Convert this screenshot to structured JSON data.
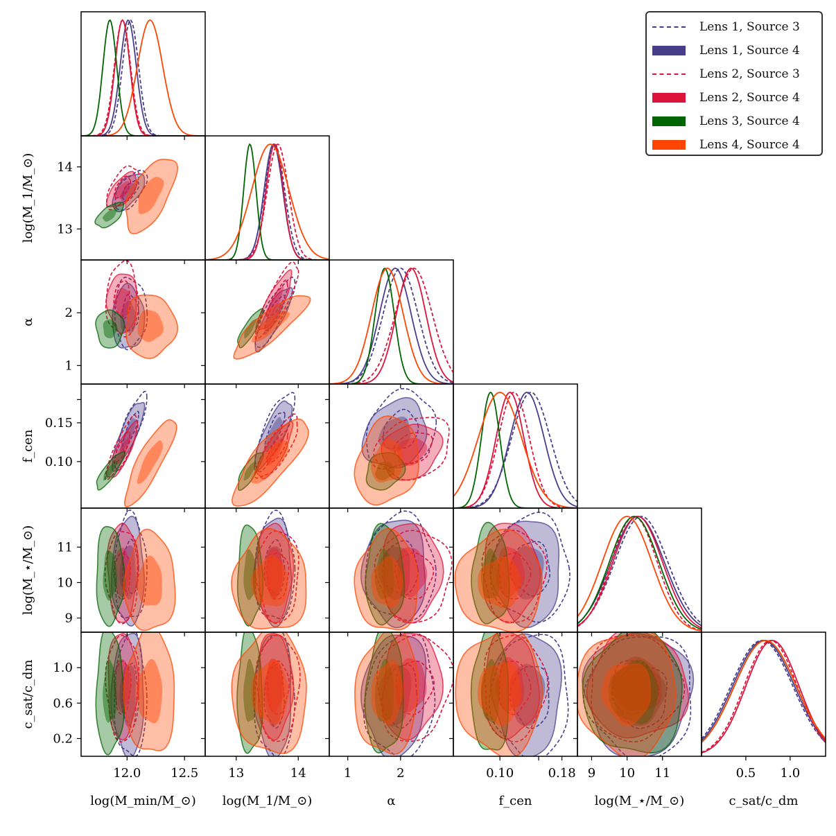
{
  "chart_data": {
    "type": "corner",
    "parameters": [
      {
        "key": "log_mmin",
        "range": [
          11.6,
          12.68
        ],
        "ticks": [
          12.0,
          12.5
        ],
        "tick_labels": [
          "12.0",
          "12.5"
        ],
        "ytick_labels": []
      },
      {
        "key": "log_m1",
        "range": [
          12.5,
          14.5
        ],
        "ticks": [
          13,
          14
        ],
        "tick_labels": [
          "13",
          "14"
        ],
        "ytick_labels": [
          "13",
          "14"
        ]
      },
      {
        "key": "alpha",
        "range": [
          0.65,
          3.0
        ],
        "ticks": [
          1,
          2
        ],
        "tick_labels": [
          "1",
          "2"
        ],
        "ytick_labels": [
          "1",
          "2"
        ]
      },
      {
        "key": "f_cen",
        "range": [
          0.04,
          0.2
        ],
        "ticks": [
          0.1,
          0.15,
          0.18
        ],
        "tick_labels": [
          "0.10",
          "",
          "0.18"
        ],
        "ytick_labels": [
          "0.10",
          "0.15"
        ]
      },
      {
        "key": "log_mstar",
        "range": [
          8.6,
          12.1
        ],
        "ticks": [
          9,
          10,
          11
        ],
        "tick_labels": [
          "9",
          "10",
          "11"
        ],
        "ytick_labels": [
          "9",
          "10",
          "11"
        ]
      },
      {
        "key": "c_ratio",
        "range": [
          0.0,
          1.4
        ],
        "ticks": [
          0.2,
          0.6,
          1.0
        ],
        "tick_labels": [
          "0.5",
          "1.0"
        ],
        "ytick_labels": [
          "0.2",
          "0.6",
          "1.0"
        ]
      }
    ],
    "axis_labels": {
      "log_mmin": "log(M_min/M_⊙)",
      "log_m1": "log(M_1/M_⊙)",
      "alpha": "α",
      "f_cen": "f_cen",
      "log_mstar": "log(M_⋆/M_⊙)",
      "c_ratio": "c_sat/c_dm"
    },
    "last_column_ticks": [
      0.5,
      1.0
    ],
    "series": [
      {
        "name": "Lens 1, Source 3",
        "color": "#483D8B",
        "style": "dashed",
        "mean": {
          "log_mmin": 12.03,
          "log_m1": 13.62,
          "alpha": 2.0,
          "f_cen": 0.14,
          "log_mstar": 10.4,
          "c_ratio": 0.68
        },
        "sigma": {
          "log_mmin": 0.07,
          "log_m1": 0.16,
          "alpha": 0.33,
          "f_cen": 0.025,
          "log_mstar": 0.75,
          "c_ratio": 0.35
        }
      },
      {
        "name": "Lens 1, Source 4",
        "color": "#483D8B",
        "style": "filled",
        "mean": {
          "log_mmin": 12.01,
          "log_m1": 13.6,
          "alpha": 1.9,
          "f_cen": 0.135,
          "log_mstar": 10.3,
          "c_ratio": 0.7
        },
        "sigma": {
          "log_mmin": 0.07,
          "log_m1": 0.15,
          "alpha": 0.3,
          "f_cen": 0.022,
          "log_mstar": 0.75,
          "c_ratio": 0.35
        }
      },
      {
        "name": "Lens 2, Source 3",
        "color": "#DC143C",
        "style": "dashed",
        "mean": {
          "log_mmin": 11.96,
          "log_m1": 13.67,
          "alpha": 2.25,
          "f_cen": 0.118,
          "log_mstar": 10.2,
          "c_ratio": 0.78
        },
        "sigma": {
          "log_mmin": 0.07,
          "log_m1": 0.17,
          "alpha": 0.35,
          "f_cen": 0.02,
          "log_mstar": 0.65,
          "c_ratio": 0.3
        }
      },
      {
        "name": "Lens 2, Source 4",
        "color": "#DC143C",
        "style": "filled",
        "mean": {
          "log_mmin": 11.96,
          "log_m1": 13.62,
          "alpha": 2.2,
          "f_cen": 0.113,
          "log_mstar": 10.3,
          "c_ratio": 0.8
        },
        "sigma": {
          "log_mmin": 0.065,
          "log_m1": 0.14,
          "alpha": 0.28,
          "f_cen": 0.018,
          "log_mstar": 0.7,
          "c_ratio": 0.3
        }
      },
      {
        "name": "Lens 3, Source 4",
        "color": "#006400",
        "style": "filled",
        "mean": {
          "log_mmin": 11.85,
          "log_m1": 13.22,
          "alpha": 1.7,
          "f_cen": 0.088,
          "log_mstar": 10.2,
          "c_ratio": 0.72
        },
        "sigma": {
          "log_mmin": 0.06,
          "log_m1": 0.1,
          "alpha": 0.18,
          "f_cen": 0.012,
          "log_mstar": 0.7,
          "c_ratio": 0.35
        }
      },
      {
        "name": "Lens 4, Source 4",
        "color": "#FF4500",
        "style": "filled",
        "mean": {
          "log_mmin": 12.2,
          "log_m1": 13.55,
          "alpha": 1.75,
          "f_cen": 0.1,
          "log_mstar": 10.0,
          "c_ratio": 0.72
        },
        "sigma": {
          "log_mmin": 0.11,
          "log_m1": 0.3,
          "alpha": 0.3,
          "f_cen": 0.028,
          "log_mstar": 0.7,
          "c_ratio": 0.35
        }
      }
    ],
    "legend_position": "top-right"
  }
}
